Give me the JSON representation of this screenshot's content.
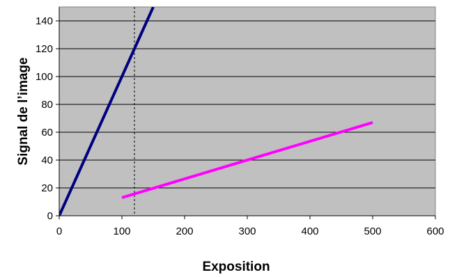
{
  "chart_data": {
    "type": "line",
    "title": "",
    "xlabel": "Exposition",
    "ylabel": "Signal de l’image",
    "xlim": [
      0,
      600
    ],
    "ylim": [
      0,
      150
    ],
    "x_ticks": [
      0,
      100,
      200,
      300,
      400,
      500,
      600
    ],
    "y_ticks": [
      0,
      20,
      40,
      60,
      80,
      100,
      120,
      140
    ],
    "grid": "horizontal",
    "legend": "none",
    "plot_background": "#c0c0c0",
    "series": [
      {
        "color": "#000080",
        "points": [
          [
            0,
            0
          ],
          [
            150,
            150
          ]
        ]
      },
      {
        "color": "#ff00ff",
        "points": [
          [
            100,
            13
          ],
          [
            500,
            67
          ]
        ]
      }
    ],
    "reference_line": {
      "axis": "x",
      "value": 120,
      "style": "dashed",
      "color": "#000000"
    }
  }
}
